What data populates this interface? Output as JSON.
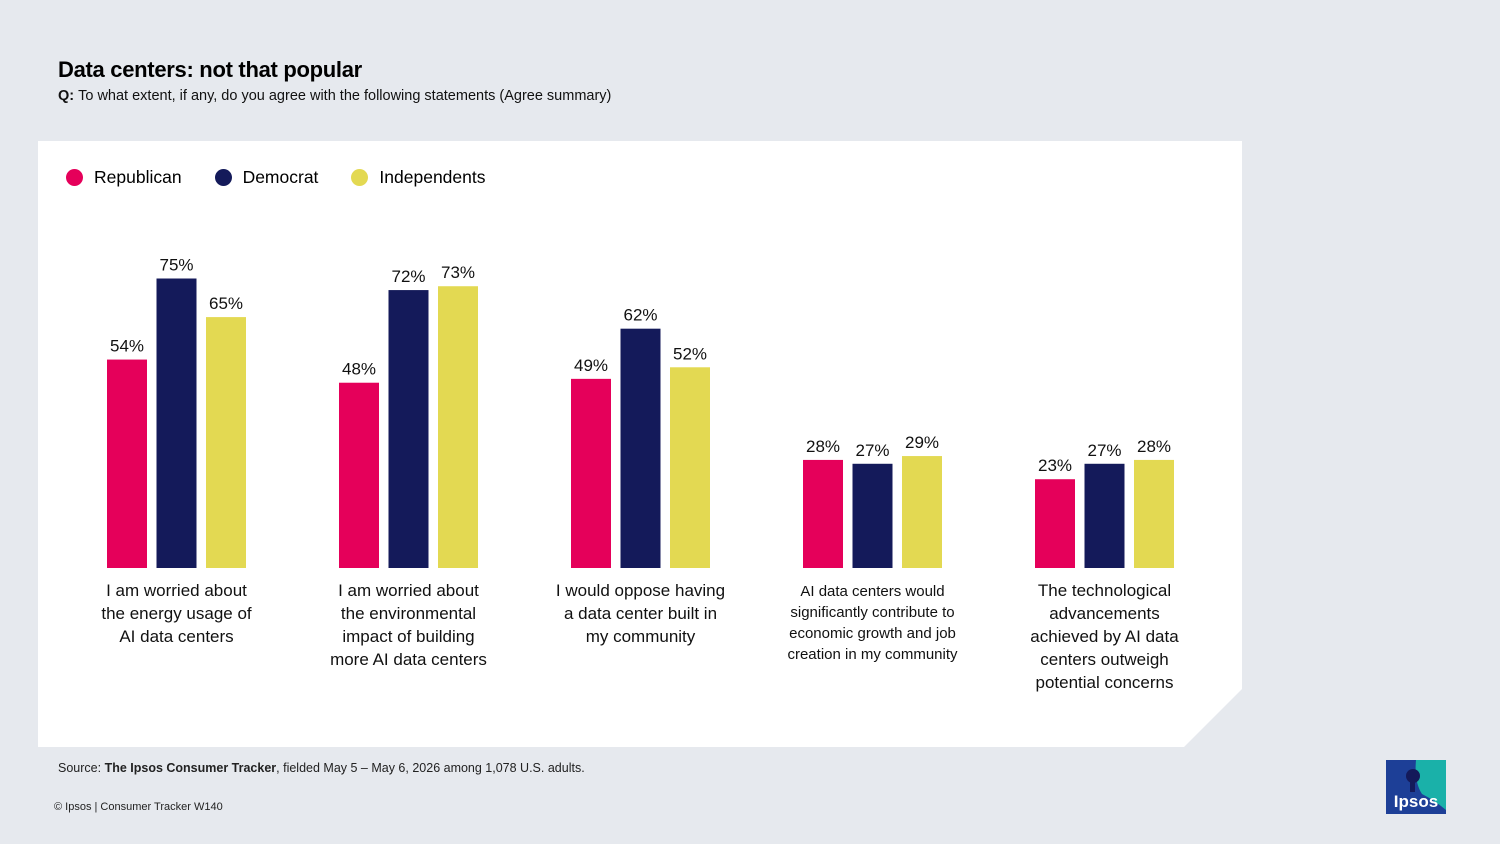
{
  "header": {
    "title": "Data centers: not that popular",
    "question_prefix": "Q:",
    "question": "To what extent, if any, do you agree with the following statements (Agree summary)"
  },
  "footer": {
    "source_prefix": "Source: ",
    "source_bold": "The Ipsos Consumer Tracker",
    "source_rest": ", fielded May 5 – May 6, 2026 among 1,078 U.S. adults.",
    "copyright": "© Ipsos | Consumer Tracker W140"
  },
  "logo": {
    "text": "Ipsos"
  },
  "colors": {
    "republican": "#e5005a",
    "democrat": "#141a5a",
    "independents": "#e3d952",
    "background": "#e6e9ee",
    "logo_bg": "#1d3f97",
    "logo_accent": "#1ab1a9"
  },
  "chart_data": {
    "type": "bar",
    "title": "Data centers: not that popular",
    "legend_position": "top-left",
    "ylim": [
      0,
      100
    ],
    "grid": false,
    "value_suffix": "%",
    "categories": [
      [
        "I am worried about",
        "the energy usage of",
        "AI data centers"
      ],
      [
        "I am worried about",
        "the environmental",
        "impact of building",
        "more AI data centers"
      ],
      [
        "I would oppose having",
        "a data center built in",
        "my community"
      ],
      [
        "AI data centers would",
        "significantly contribute to",
        "economic growth and job",
        "creation in my community"
      ],
      [
        "The technological",
        "advancements",
        "achieved by AI data",
        "centers outweigh",
        "potential concerns"
      ]
    ],
    "series": [
      {
        "name": "Republican",
        "color": "#e5005a",
        "values": [
          54,
          48,
          49,
          28,
          23
        ]
      },
      {
        "name": "Democrat",
        "color": "#141a5a",
        "values": [
          75,
          72,
          62,
          27,
          27
        ]
      },
      {
        "name": "Independents",
        "color": "#e3d952",
        "values": [
          65,
          73,
          52,
          29,
          28
        ]
      }
    ]
  }
}
